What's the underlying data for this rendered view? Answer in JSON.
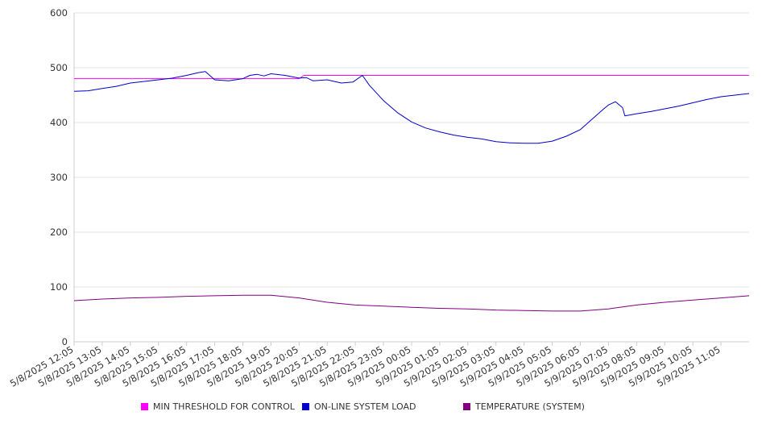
{
  "chart_data": {
    "type": "line",
    "title": "",
    "xlabel": "",
    "ylabel": "",
    "ylim": [
      0,
      600
    ],
    "yticks": [
      0,
      100,
      200,
      300,
      400,
      500,
      600
    ],
    "grid": true,
    "legend_position": "bottom",
    "xtick_labels": [
      "5/8/2025 12:05",
      "5/8/2025 13:05",
      "5/8/2025 14:05",
      "5/8/2025 15:05",
      "5/8/2025 16:05",
      "5/8/2025 17:05",
      "5/8/2025 18:05",
      "5/8/2025 19:05",
      "5/8/2025 20:05",
      "5/8/2025 21:05",
      "5/8/2025 22:05",
      "5/8/2025 23:05",
      "5/9/2025 00:05",
      "5/9/2025 01:05",
      "5/9/2025 02:05",
      "5/9/2025 03:05",
      "5/9/2025 04:05",
      "5/9/2025 05:05",
      "5/9/2025 06:05",
      "5/9/2025 07:05",
      "5/9/2025 08:05",
      "5/9/2025 09:05",
      "5/9/2025 10:05",
      "5/9/2025 11:05"
    ],
    "series": [
      {
        "name": "MIN THRESHOLD FOR CONTROL",
        "color": "#ff00ff",
        "x": [
          "5/8/2025 12:05",
          "5/8/2025 20:05",
          "5/8/2025 20:15",
          "5/9/2025 12:05"
        ],
        "values": [
          480,
          480,
          486,
          486
        ]
      },
      {
        "name": "ON-LINE SYSTEM LOAD",
        "color": "#0000cc",
        "x": [
          "5/8/2025 12:05",
          "5/8/2025 12:35",
          "5/8/2025 13:05",
          "5/8/2025 13:35",
          "5/8/2025 14:05",
          "5/8/2025 14:35",
          "5/8/2025 15:05",
          "5/8/2025 15:35",
          "5/8/2025 16:05",
          "5/8/2025 16:30",
          "5/8/2025 16:45",
          "5/8/2025 17:05",
          "5/8/2025 17:35",
          "5/8/2025 18:05",
          "5/8/2025 18:20",
          "5/8/2025 18:35",
          "5/8/2025 18:50",
          "5/8/2025 19:05",
          "5/8/2025 19:35",
          "5/8/2025 20:05",
          "5/8/2025 20:20",
          "5/8/2025 20:35",
          "5/8/2025 21:05",
          "5/8/2025 21:35",
          "5/8/2025 22:00",
          "5/8/2025 22:20",
          "5/8/2025 22:35",
          "5/8/2025 23:05",
          "5/8/2025 23:35",
          "5/9/2025 00:05",
          "5/9/2025 00:35",
          "5/9/2025 01:05",
          "5/9/2025 01:35",
          "5/9/2025 02:05",
          "5/9/2025 02:35",
          "5/9/2025 03:05",
          "5/9/2025 03:35",
          "5/9/2025 04:05",
          "5/9/2025 04:35",
          "5/9/2025 05:05",
          "5/9/2025 05:35",
          "5/9/2025 06:05",
          "5/9/2025 06:35",
          "5/9/2025 06:55",
          "5/9/2025 07:05",
          "5/9/2025 07:20",
          "5/9/2025 07:35",
          "5/9/2025 07:40",
          "5/9/2025 08:05",
          "5/9/2025 08:35",
          "5/9/2025 09:05",
          "5/9/2025 09:35",
          "5/9/2025 10:05",
          "5/9/2025 10:35",
          "5/9/2025 11:05",
          "5/9/2025 11:35",
          "5/9/2025 12:05"
        ],
        "values": [
          457,
          458,
          462,
          466,
          472,
          475,
          478,
          481,
          486,
          491,
          493,
          478,
          476,
          480,
          486,
          488,
          485,
          489,
          486,
          481,
          482,
          476,
          478,
          472,
          474,
          486,
          468,
          440,
          418,
          401,
          390,
          383,
          377,
          373,
          370,
          365,
          363,
          362,
          362,
          366,
          375,
          387,
          410,
          425,
          432,
          438,
          427,
          412,
          416,
          420,
          425,
          430,
          436,
          442,
          447,
          450,
          453
        ]
      },
      {
        "name": "TEMPERATURE (SYSTEM)",
        "color": "#800080",
        "x": [
          "5/8/2025 12:05",
          "5/8/2025 13:05",
          "5/8/2025 14:05",
          "5/8/2025 15:05",
          "5/8/2025 16:05",
          "5/8/2025 17:05",
          "5/8/2025 18:05",
          "5/8/2025 19:05",
          "5/8/2025 20:05",
          "5/8/2025 21:05",
          "5/8/2025 22:05",
          "5/8/2025 23:05",
          "5/9/2025 00:05",
          "5/9/2025 01:05",
          "5/9/2025 02:05",
          "5/9/2025 03:05",
          "5/9/2025 04:05",
          "5/9/2025 05:05",
          "5/9/2025 06:05",
          "5/9/2025 07:05",
          "5/9/2025 08:05",
          "5/9/2025 09:05",
          "5/9/2025 10:05",
          "5/9/2025 11:05",
          "5/9/2025 12:05"
        ],
        "values": [
          75,
          78,
          80,
          81,
          83,
          84,
          85,
          85,
          80,
          72,
          67,
          65,
          63,
          61,
          60,
          58,
          57,
          56,
          56,
          60,
          67,
          72,
          76,
          80,
          84
        ]
      }
    ]
  }
}
